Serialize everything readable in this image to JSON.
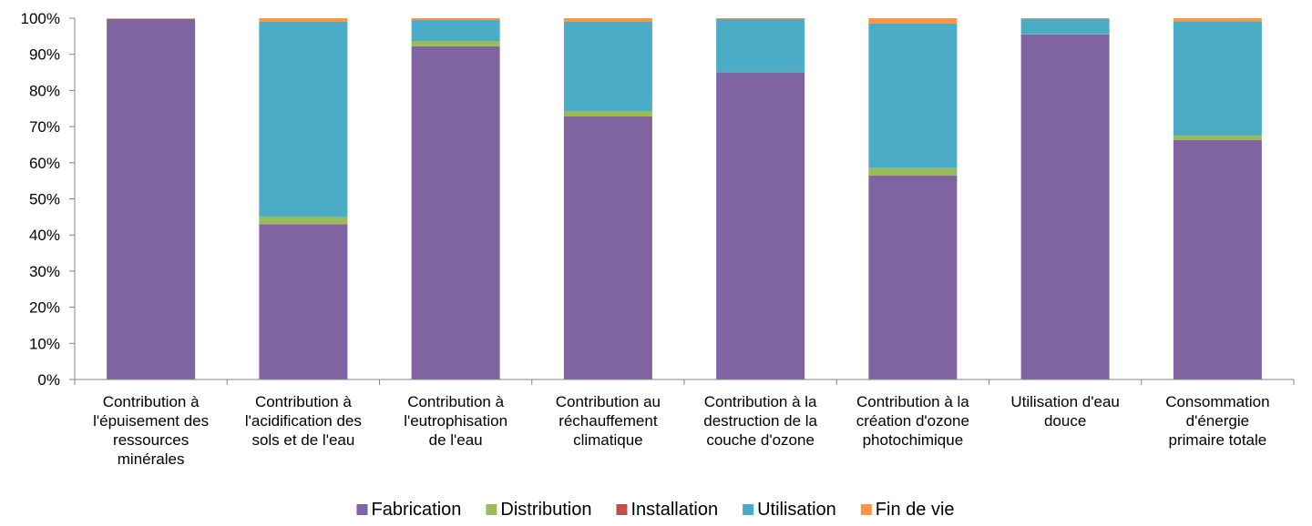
{
  "chart_data": {
    "type": "bar",
    "stacked": true,
    "normalized_percent": true,
    "title": "",
    "xlabel": "",
    "ylabel": "",
    "ylim": [
      0,
      100
    ],
    "ytick_format": "{v}%",
    "grid": false,
    "legend_position": "bottom",
    "yticks": [
      0,
      10,
      20,
      30,
      40,
      50,
      60,
      70,
      80,
      90,
      100
    ],
    "categories": [
      [
        "Contribution à",
        "l'épuisement des",
        "ressources",
        "minérales"
      ],
      [
        "Contribution à",
        "l'acidification des",
        "sols et de l'eau"
      ],
      [
        "Contribution à",
        "l'eutrophisation",
        "de l'eau"
      ],
      [
        "Contribution au",
        "réchauffement",
        "climatique"
      ],
      [
        "Contribution à la",
        "destruction de la",
        "couche d'ozone"
      ],
      [
        "Contribution à la",
        "création d'ozone",
        "photochimique"
      ],
      [
        "Utilisation d'eau",
        "douce"
      ],
      [
        "Consommation",
        "d'énergie",
        "primaire totale"
      ]
    ],
    "series": [
      {
        "name": "Fabrication",
        "color": "#8064A2",
        "values": [
          99.8,
          43.0,
          92.2,
          72.8,
          85.0,
          56.5,
          95.5,
          66.3
        ]
      },
      {
        "name": "Distribution",
        "color": "#9BBB59",
        "values": [
          0.05,
          2.0,
          1.5,
          1.5,
          0.05,
          2.0,
          0.05,
          1.2
        ]
      },
      {
        "name": "Installation",
        "color": "#C0504D",
        "values": [
          0.0,
          0.0,
          0.0,
          0.0,
          0.0,
          0.0,
          0.0,
          0.0
        ]
      },
      {
        "name": "Utilisation",
        "color": "#4BACC6",
        "values": [
          0.05,
          54.0,
          5.8,
          24.7,
          14.7,
          40.0,
          4.3,
          31.6
        ]
      },
      {
        "name": "Fin de vie",
        "color": "#F79646",
        "values": [
          0.1,
          1.0,
          0.5,
          1.0,
          0.25,
          1.5,
          0.15,
          0.9
        ]
      }
    ]
  }
}
